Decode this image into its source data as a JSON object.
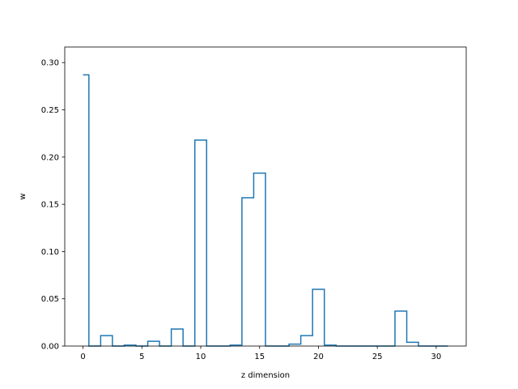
{
  "chart_data": {
    "type": "line",
    "style": "step",
    "xlabel": "z dimension",
    "ylabel": "w",
    "xlim": [
      -1.55,
      32.55
    ],
    "ylim": [
      0,
      0.3165
    ],
    "xticks": [
      0,
      5,
      10,
      15,
      20,
      25,
      30
    ],
    "yticks": [
      0.0,
      0.05,
      0.1,
      0.15,
      0.2,
      0.25,
      0.3
    ],
    "ytick_labels": [
      "0.00",
      "0.05",
      "0.10",
      "0.15",
      "0.20",
      "0.25",
      "0.30"
    ],
    "grid": false,
    "line_color": "#1f77b4",
    "x": [
      0,
      1,
      2,
      3,
      4,
      5,
      6,
      7,
      8,
      9,
      10,
      11,
      12,
      13,
      14,
      15,
      16,
      17,
      18,
      19,
      20,
      21,
      22,
      23,
      24,
      25,
      26,
      27,
      28,
      29,
      30,
      31
    ],
    "values": [
      0.287,
      0.0,
      0.011,
      0.0,
      0.001,
      0.0,
      0.005,
      0.0,
      0.018,
      0.0,
      0.218,
      0.0,
      0.0,
      0.001,
      0.157,
      0.183,
      0.0,
      0.0,
      0.002,
      0.011,
      0.06,
      0.001,
      0.0,
      0.0,
      0.0,
      0.0,
      0.0,
      0.037,
      0.004,
      0.0,
      0.0,
      0.0
    ]
  }
}
